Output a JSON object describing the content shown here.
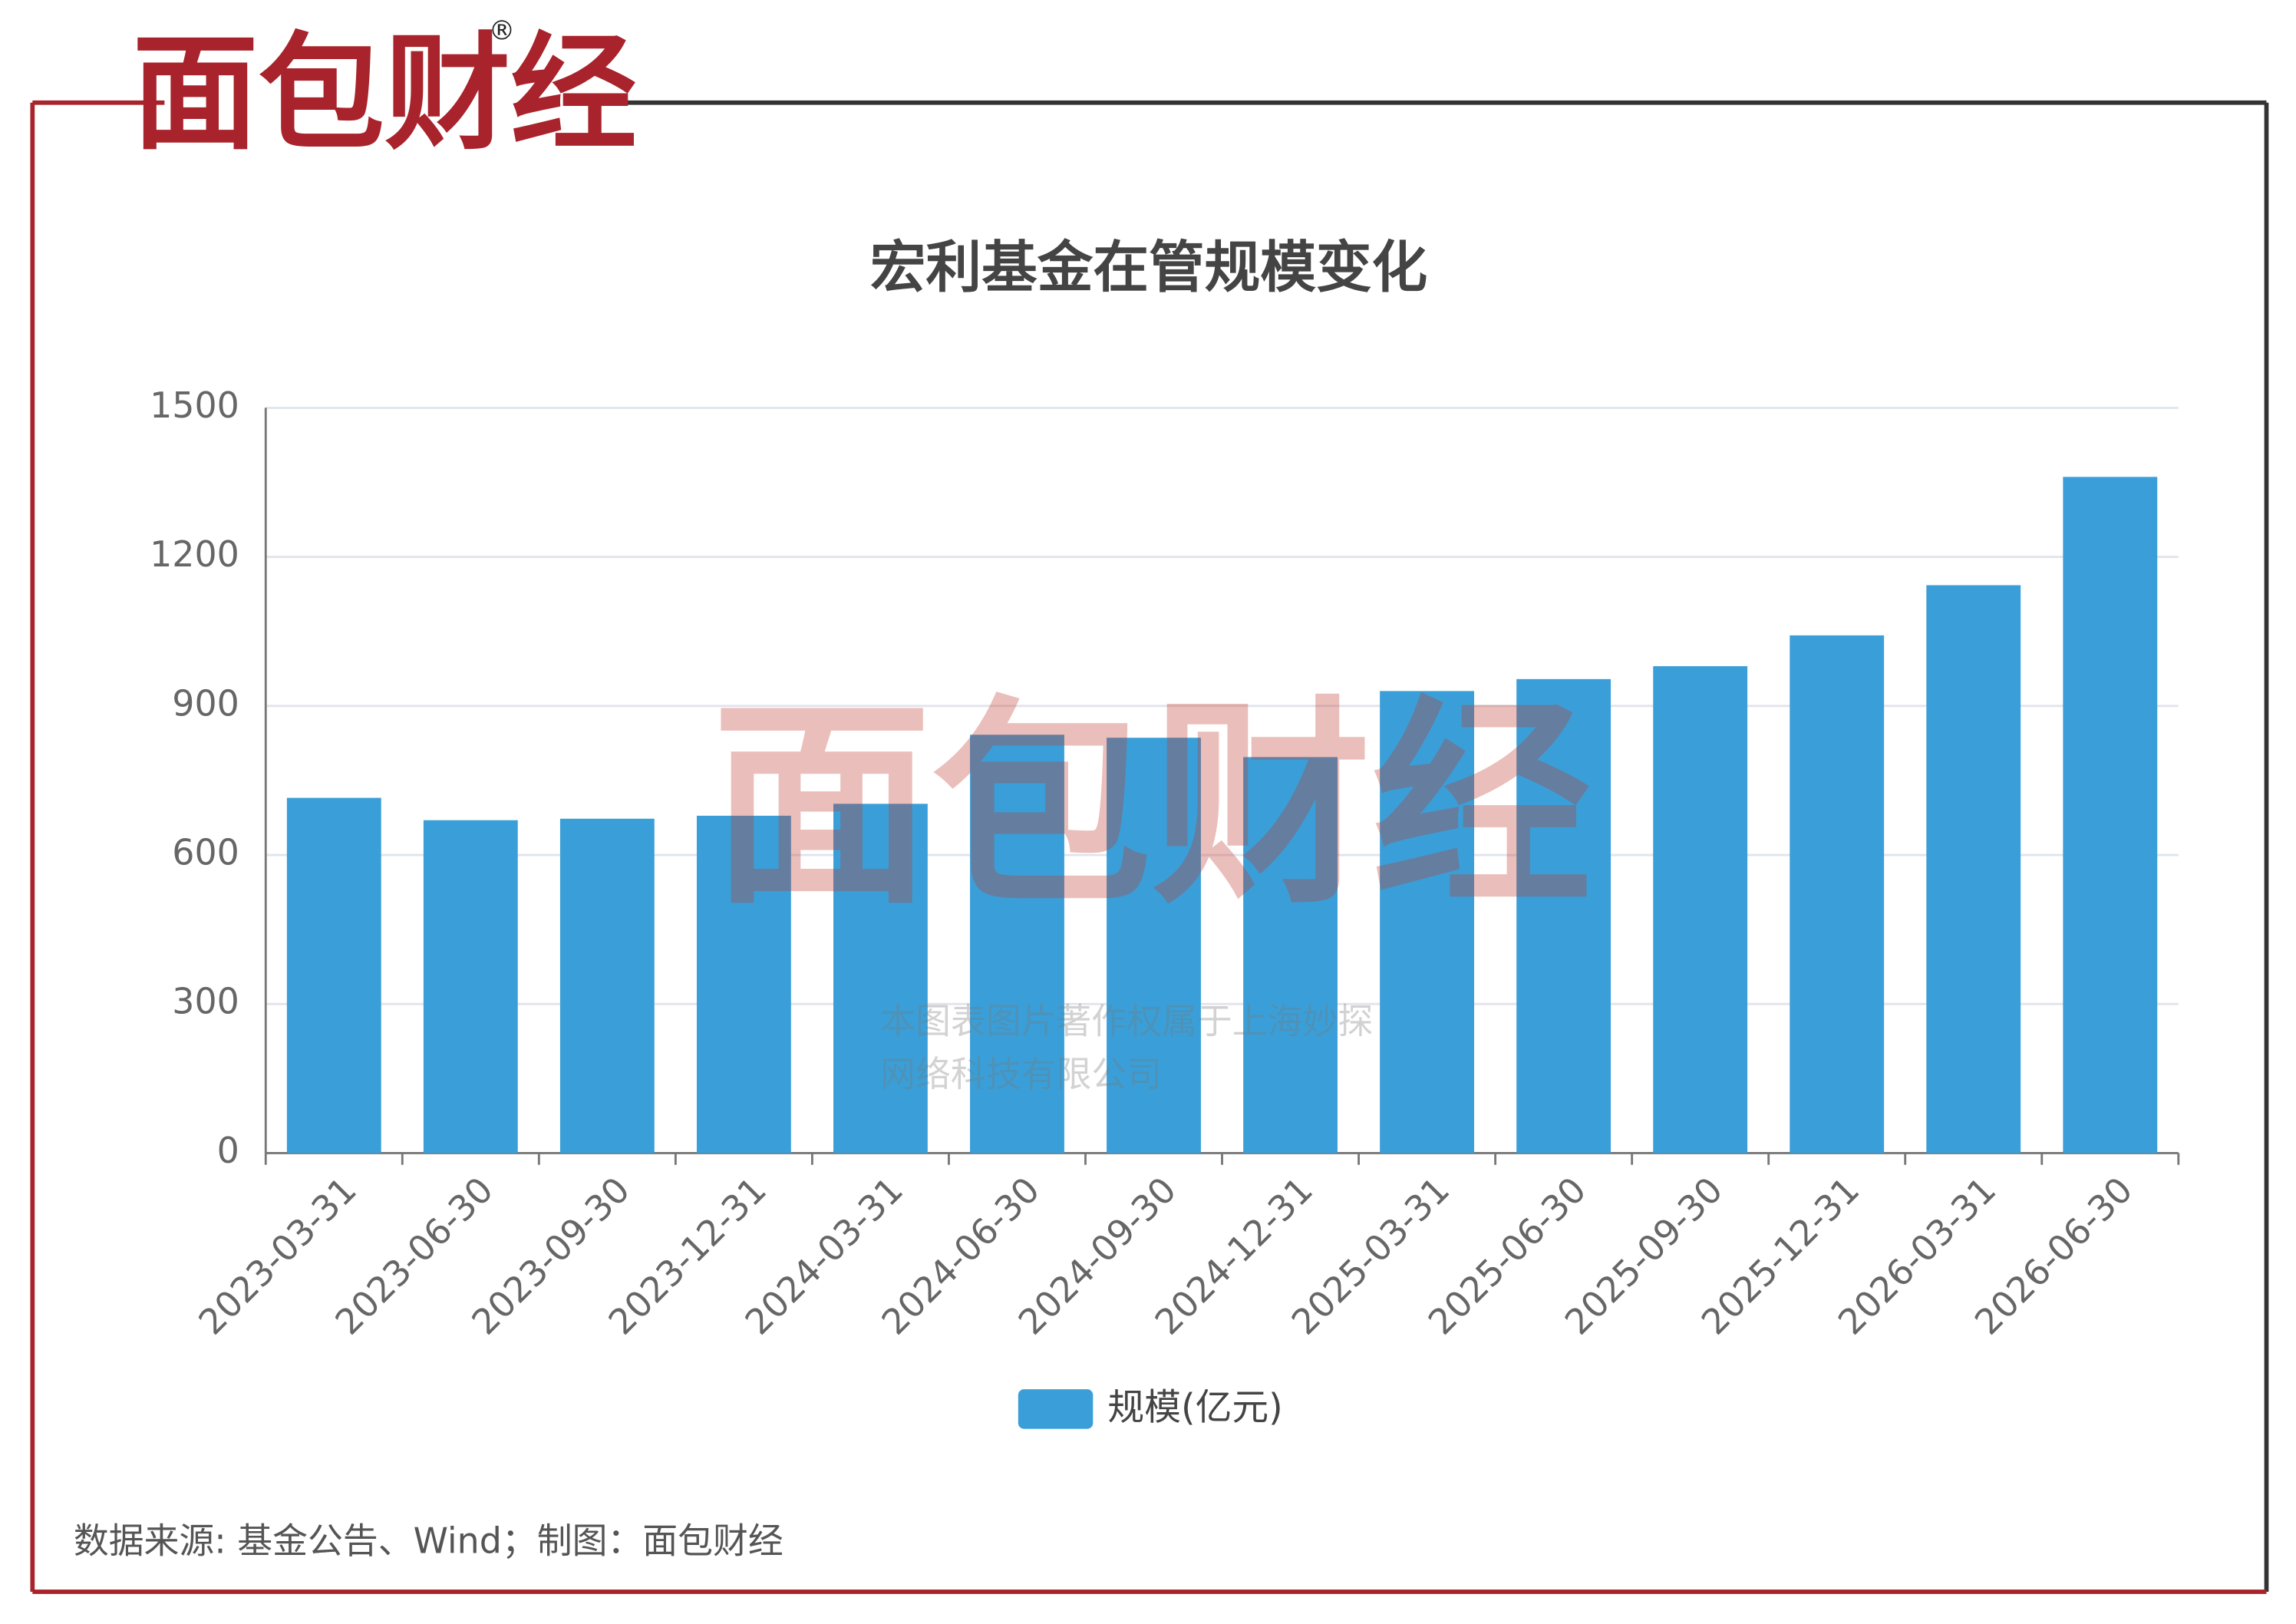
{
  "header": {
    "logo": "面包财经",
    "registered": "®"
  },
  "chart_data": {
    "type": "bar",
    "title": "宏利基金在管规模变化",
    "categories": [
      "2023-03-31",
      "2023-06-30",
      "2023-09-30",
      "2023-12-31",
      "2024-03-31",
      "2024-06-30",
      "2024-09-30",
      "2024-12-31",
      "2025-03-31",
      "2025-06-30",
      "2025-09-30",
      "2025-12-31",
      "2026-03-31",
      "2026-06-30"
    ],
    "series": [
      {
        "name": "规模(亿元)",
        "color": "#3a9fd8",
        "values": [
          715,
          670,
          673,
          679,
          703,
          842,
          836,
          797,
          930,
          954,
          980,
          1042,
          1143,
          1361
        ]
      }
    ],
    "ylim": [
      0,
      1500
    ],
    "yticks": [
      0,
      300,
      600,
      900,
      1200,
      1500
    ],
    "grid": true,
    "legend": "bottom"
  },
  "watermark": {
    "logo": "面包财经",
    "lines": [
      "本图表图片著作权属于上海妙探",
      "网络科技有限公司"
    ]
  },
  "footer": {
    "source": "数据来源: 基金公告、Wind；制图：面包财经"
  }
}
